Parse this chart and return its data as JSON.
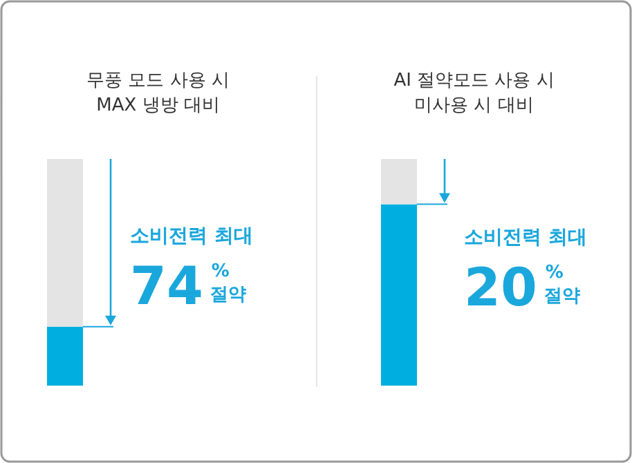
{
  "chart_data": [
    {
      "type": "bar",
      "stacked": true,
      "title": "무풍 모드 사용 시\nMAX 냉방 대비",
      "categories": [
        null
      ],
      "series": [
        {
          "color": "#00aedf",
          "values": [
            26
          ]
        },
        {
          "color": "#e4e4e4",
          "values": [
            74
          ],
          "value_labels": [
            "74$^{%}$"
          ]
        }
      ],
      "annotations": [
        "소비전력 최대",
        "절약"
      ]
    },
    {
      "type": "bar",
      "stacked": true,
      "title": "AI 절약모드 사용 시\n미사용 시 대비",
      "categories": [
        null
      ],
      "series": [
        {
          "color": "#00aedf",
          "values": [
            80
          ]
        },
        {
          "color": "#e4e4e4",
          "values": [
            20
          ],
          "value_labels": [
            "20$^{%}$"
          ]
        }
      ],
      "annotations": [
        "소비전력 최대",
        "절약"
      ]
    }
  ]
}
